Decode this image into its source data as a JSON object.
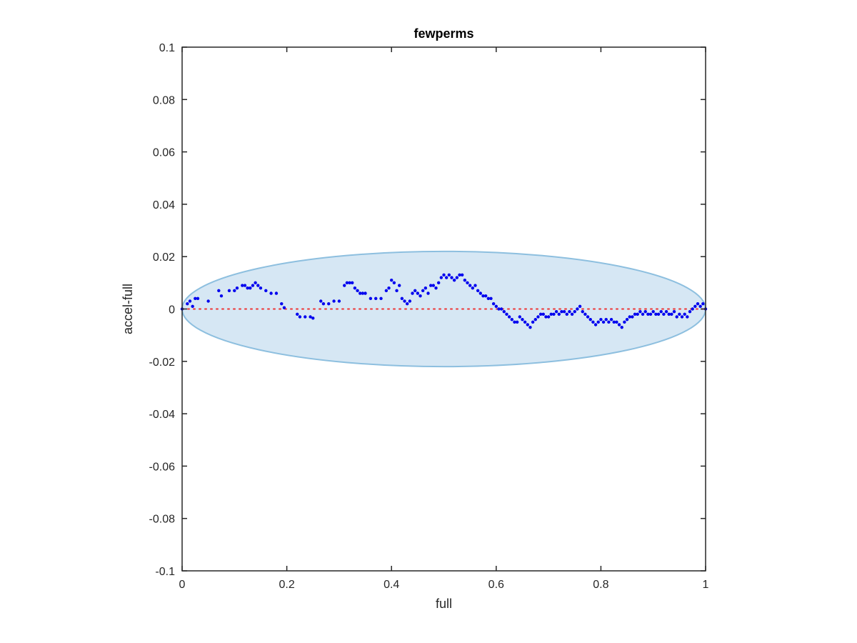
{
  "chart_data": {
    "type": "scatter",
    "title": "fewperms",
    "xlabel": "full",
    "ylabel": "accel-full",
    "xlim": [
      0,
      1
    ],
    "ylim": [
      -0.1,
      0.1
    ],
    "x_ticks": [
      "0",
      "0.2",
      "0.4",
      "0.6",
      "0.8",
      "1"
    ],
    "y_ticks": [
      "0.1",
      "0.08",
      "0.06",
      "0.04",
      "0.02",
      "0",
      "-0.02",
      "-0.04",
      "-0.06",
      "-0.08",
      "-0.1"
    ],
    "grid": false,
    "colors": {
      "points": "#0000ee",
      "reference_line": "#ee3333",
      "ellipse_fill": "#d6e7f4",
      "ellipse_edge": "#8dbfdf",
      "axes": "#262626"
    },
    "reference_line": {
      "y": 0,
      "style": "dotted"
    },
    "ellipse": {
      "center": [
        0.5,
        0
      ],
      "x_radius": 0.5,
      "y_radius": 0.022
    },
    "series": [
      {
        "points": [
          [
            0.0,
            0.0
          ],
          [
            0.01,
            0.002
          ],
          [
            0.015,
            0.003
          ],
          [
            0.02,
            0.001
          ],
          [
            0.025,
            0.004
          ],
          [
            0.03,
            0.004
          ],
          [
            0.05,
            0.003
          ],
          [
            0.07,
            0.007
          ],
          [
            0.075,
            0.005
          ],
          [
            0.09,
            0.007
          ],
          [
            0.1,
            0.007
          ],
          [
            0.105,
            0.008
          ],
          [
            0.115,
            0.009
          ],
          [
            0.12,
            0.009
          ],
          [
            0.125,
            0.008
          ],
          [
            0.13,
            0.008
          ],
          [
            0.135,
            0.009
          ],
          [
            0.14,
            0.01
          ],
          [
            0.145,
            0.009
          ],
          [
            0.15,
            0.008
          ],
          [
            0.16,
            0.007
          ],
          [
            0.17,
            0.006
          ],
          [
            0.18,
            0.006
          ],
          [
            0.19,
            0.002
          ],
          [
            0.195,
            0.0005
          ],
          [
            0.22,
            -0.002
          ],
          [
            0.225,
            -0.003
          ],
          [
            0.235,
            -0.003
          ],
          [
            0.245,
            -0.003
          ],
          [
            0.25,
            -0.0035
          ],
          [
            0.265,
            0.003
          ],
          [
            0.27,
            0.002
          ],
          [
            0.28,
            0.002
          ],
          [
            0.29,
            0.003
          ],
          [
            0.3,
            0.003
          ],
          [
            0.31,
            0.009
          ],
          [
            0.315,
            0.01
          ],
          [
            0.32,
            0.01
          ],
          [
            0.325,
            0.01
          ],
          [
            0.33,
            0.008
          ],
          [
            0.335,
            0.007
          ],
          [
            0.34,
            0.006
          ],
          [
            0.345,
            0.006
          ],
          [
            0.35,
            0.006
          ],
          [
            0.36,
            0.004
          ],
          [
            0.37,
            0.004
          ],
          [
            0.38,
            0.004
          ],
          [
            0.39,
            0.007
          ],
          [
            0.395,
            0.008
          ],
          [
            0.4,
            0.011
          ],
          [
            0.405,
            0.01
          ],
          [
            0.41,
            0.007
          ],
          [
            0.415,
            0.009
          ],
          [
            0.42,
            0.004
          ],
          [
            0.425,
            0.003
          ],
          [
            0.43,
            0.002
          ],
          [
            0.435,
            0.003
          ],
          [
            0.44,
            0.006
          ],
          [
            0.445,
            0.007
          ],
          [
            0.45,
            0.006
          ],
          [
            0.455,
            0.005
          ],
          [
            0.46,
            0.007
          ],
          [
            0.465,
            0.008
          ],
          [
            0.47,
            0.006
          ],
          [
            0.475,
            0.009
          ],
          [
            0.48,
            0.009
          ],
          [
            0.485,
            0.008
          ],
          [
            0.49,
            0.01
          ],
          [
            0.495,
            0.012
          ],
          [
            0.5,
            0.013
          ],
          [
            0.505,
            0.012
          ],
          [
            0.51,
            0.013
          ],
          [
            0.515,
            0.012
          ],
          [
            0.52,
            0.011
          ],
          [
            0.525,
            0.012
          ],
          [
            0.53,
            0.013
          ],
          [
            0.535,
            0.013
          ],
          [
            0.54,
            0.011
          ],
          [
            0.545,
            0.01
          ],
          [
            0.55,
            0.009
          ],
          [
            0.555,
            0.008
          ],
          [
            0.56,
            0.009
          ],
          [
            0.565,
            0.007
          ],
          [
            0.57,
            0.006
          ],
          [
            0.575,
            0.005
          ],
          [
            0.58,
            0.005
          ],
          [
            0.585,
            0.004
          ],
          [
            0.59,
            0.004
          ],
          [
            0.595,
            0.002
          ],
          [
            0.6,
            0.001
          ],
          [
            0.605,
            0.0
          ],
          [
            0.61,
            0.0
          ],
          [
            0.615,
            -0.001
          ],
          [
            0.62,
            -0.002
          ],
          [
            0.625,
            -0.003
          ],
          [
            0.63,
            -0.004
          ],
          [
            0.635,
            -0.005
          ],
          [
            0.64,
            -0.005
          ],
          [
            0.645,
            -0.003
          ],
          [
            0.65,
            -0.004
          ],
          [
            0.655,
            -0.005
          ],
          [
            0.66,
            -0.006
          ],
          [
            0.665,
            -0.007
          ],
          [
            0.67,
            -0.005
          ],
          [
            0.675,
            -0.004
          ],
          [
            0.68,
            -0.003
          ],
          [
            0.685,
            -0.002
          ],
          [
            0.69,
            -0.002
          ],
          [
            0.695,
            -0.003
          ],
          [
            0.7,
            -0.003
          ],
          [
            0.705,
            -0.002
          ],
          [
            0.71,
            -0.002
          ],
          [
            0.715,
            -0.001
          ],
          [
            0.72,
            -0.002
          ],
          [
            0.725,
            -0.001
          ],
          [
            0.73,
            -0.001
          ],
          [
            0.735,
            -0.002
          ],
          [
            0.74,
            -0.001
          ],
          [
            0.745,
            -0.002
          ],
          [
            0.75,
            -0.001
          ],
          [
            0.755,
            0.0
          ],
          [
            0.76,
            0.001
          ],
          [
            0.765,
            -0.001
          ],
          [
            0.77,
            -0.002
          ],
          [
            0.775,
            -0.003
          ],
          [
            0.78,
            -0.004
          ],
          [
            0.785,
            -0.005
          ],
          [
            0.79,
            -0.006
          ],
          [
            0.795,
            -0.005
          ],
          [
            0.8,
            -0.004
          ],
          [
            0.805,
            -0.005
          ],
          [
            0.81,
            -0.004
          ],
          [
            0.815,
            -0.005
          ],
          [
            0.82,
            -0.004
          ],
          [
            0.825,
            -0.005
          ],
          [
            0.83,
            -0.005
          ],
          [
            0.835,
            -0.006
          ],
          [
            0.84,
            -0.007
          ],
          [
            0.845,
            -0.005
          ],
          [
            0.85,
            -0.004
          ],
          [
            0.855,
            -0.003
          ],
          [
            0.86,
            -0.003
          ],
          [
            0.865,
            -0.002
          ],
          [
            0.87,
            -0.002
          ],
          [
            0.875,
            -0.001
          ],
          [
            0.88,
            -0.002
          ],
          [
            0.885,
            -0.001
          ],
          [
            0.89,
            -0.002
          ],
          [
            0.895,
            -0.002
          ],
          [
            0.9,
            -0.001
          ],
          [
            0.905,
            -0.002
          ],
          [
            0.91,
            -0.002
          ],
          [
            0.915,
            -0.001
          ],
          [
            0.92,
            -0.002
          ],
          [
            0.925,
            -0.001
          ],
          [
            0.93,
            -0.002
          ],
          [
            0.935,
            -0.002
          ],
          [
            0.94,
            -0.001
          ],
          [
            0.945,
            -0.003
          ],
          [
            0.95,
            -0.002
          ],
          [
            0.955,
            -0.003
          ],
          [
            0.96,
            -0.002
          ],
          [
            0.965,
            -0.003
          ],
          [
            0.97,
            -0.001
          ],
          [
            0.975,
            0.0
          ],
          [
            0.98,
            0.001
          ],
          [
            0.985,
            0.002
          ],
          [
            0.99,
            0.001
          ],
          [
            0.995,
            0.002
          ],
          [
            1.0,
            0.0
          ]
        ]
      }
    ]
  }
}
